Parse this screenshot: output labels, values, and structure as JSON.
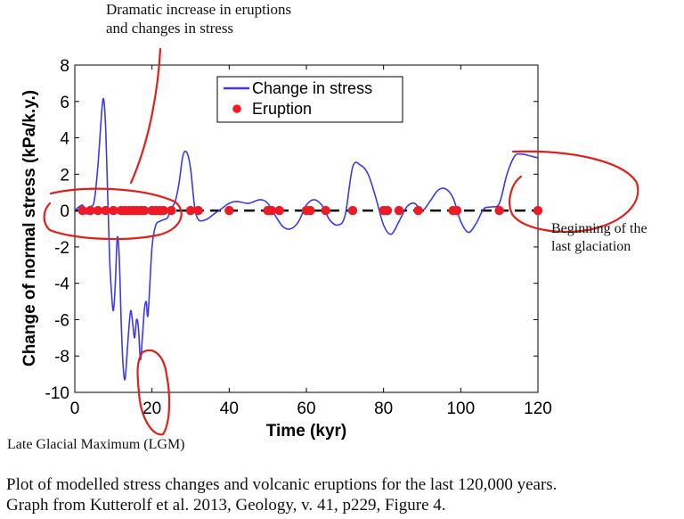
{
  "annotations": {
    "top_line1": "Dramatic increase in eruptions",
    "top_line2": "and changes in stress",
    "right_line1": "Beginning of the",
    "right_line2": "last glaciation",
    "lgm": "Late Glacial Maximum (LGM)"
  },
  "caption": {
    "line1": "Plot of modelled stress changes and volcanic eruptions for the last 120,000 years.",
    "line2": "Graph from Kutterolf et al. 2013, Geology, v. 41, p229, Figure 4."
  },
  "colors": {
    "stress_line": "#3a3ae6",
    "eruption_dot": "#ee1b24",
    "annotation_ink": "#e0201c",
    "zero_line": "#000000"
  },
  "chart_data": {
    "type": "line",
    "title": "",
    "xlabel": "Time (kyr)",
    "ylabel": "Change of normal stress (kPa/k.y.)",
    "xlim": [
      0,
      120
    ],
    "ylim": [
      -10,
      8
    ],
    "xticks": [
      0,
      20,
      40,
      60,
      80,
      100,
      120
    ],
    "yticks": [
      -10,
      -8,
      -6,
      -4,
      -2,
      0,
      2,
      4,
      6,
      8
    ],
    "grid": false,
    "legend_position": "top-center",
    "series": [
      {
        "name": "Change in stress",
        "kind": "line",
        "x": [
          0,
          2,
          3,
          4,
          5,
          6,
          7,
          7.5,
          8,
          8.5,
          9,
          9.5,
          10,
          10.5,
          11,
          11.5,
          12,
          12.5,
          13,
          13.5,
          14,
          14.5,
          15,
          15.5,
          16,
          16.5,
          17,
          17.5,
          18,
          18.5,
          19,
          20,
          21,
          22,
          23,
          24,
          25,
          26,
          27,
          28,
          29,
          30,
          31,
          32,
          34,
          36,
          38,
          40,
          42,
          45,
          48,
          50,
          52,
          54,
          56,
          58,
          60,
          62,
          64,
          66,
          68,
          70,
          72,
          74,
          76,
          78,
          80,
          82,
          84,
          86,
          88,
          90,
          92,
          94,
          96,
          98,
          100,
          102,
          104,
          106,
          108,
          110,
          112,
          114,
          116,
          118,
          120
        ],
        "y": [
          0,
          0.3,
          -0.2,
          0.2,
          0.5,
          2.5,
          5.5,
          6.1,
          4.5,
          1.0,
          -2.5,
          -4.5,
          -5.5,
          -4.0,
          -1.5,
          -2.5,
          -6.0,
          -8.5,
          -9.3,
          -8.0,
          -6.5,
          -5.5,
          -6.2,
          -7.0,
          -6.0,
          -6.5,
          -8.2,
          -7.0,
          -5.5,
          -5.0,
          -5.7,
          -2.0,
          -0.8,
          -0.6,
          -0.5,
          -0.4,
          0.1,
          0.5,
          1.5,
          3.0,
          3.2,
          2.3,
          0.3,
          -0.5,
          -0.5,
          -0.2,
          0.1,
          0.4,
          0.5,
          0.4,
          0.6,
          0.4,
          -0.3,
          -0.9,
          -1.0,
          -0.6,
          0.3,
          0.6,
          0.3,
          -0.5,
          -0.8,
          -0.3,
          2.4,
          2.5,
          2.0,
          0.7,
          -0.8,
          -1.3,
          -0.6,
          0.2,
          0.4,
          0.0,
          0.5,
          1.1,
          1.2,
          0.7,
          -0.6,
          -1.2,
          -0.7,
          0.1,
          0.2,
          0.4,
          2.0,
          3.0,
          3.1,
          3.0,
          2.9
        ]
      },
      {
        "name": "Eruption",
        "kind": "scatter",
        "x": [
          2,
          4,
          6,
          8,
          10,
          12,
          13,
          14,
          15,
          16,
          17,
          18,
          20,
          21,
          22,
          23,
          25,
          30,
          32,
          40,
          50,
          51,
          53,
          60,
          61,
          65,
          72,
          80,
          81,
          84,
          89,
          98,
          99,
          110,
          120
        ],
        "y": [
          0,
          0,
          0,
          0,
          0,
          0,
          0,
          0,
          0,
          0,
          0,
          0,
          0,
          0,
          0,
          0,
          0,
          0,
          0,
          0,
          0,
          0,
          0,
          0,
          0,
          0,
          0,
          0,
          0,
          0,
          0,
          0,
          0,
          0,
          0
        ]
      }
    ]
  }
}
